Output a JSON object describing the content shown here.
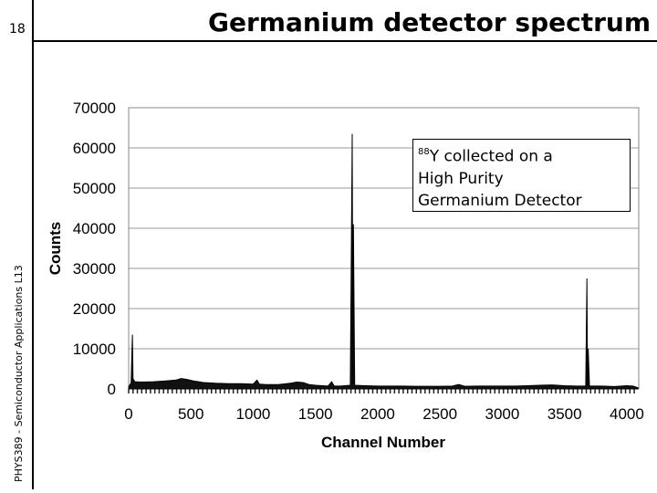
{
  "slide": {
    "number": "18",
    "title": "Germanium detector spectrum",
    "side_text": "PHYS389 - Semiconductor Applications L13"
  },
  "annotation": {
    "isotope_mass": "88",
    "isotope_symbol": "Y",
    "line1_rest": " collected on a",
    "line2": "High Purity",
    "line3": "Germanium Detector"
  },
  "chart_data": {
    "type": "line",
    "title": "",
    "xlabel": "Channel Number",
    "ylabel": "Counts",
    "xlim": [
      0,
      4096
    ],
    "ylim": [
      0,
      70000
    ],
    "x_ticks": [
      0,
      500,
      1000,
      1500,
      2000,
      2500,
      3000,
      3500,
      4000
    ],
    "y_ticks": [
      0,
      10000,
      20000,
      30000,
      40000,
      50000,
      60000,
      70000
    ],
    "grid": "horizontal",
    "line_color": "#000000",
    "series": [
      {
        "name": "",
        "points": [
          [
            0,
            500
          ],
          [
            20,
            1500
          ],
          [
            30,
            13500
          ],
          [
            35,
            2500
          ],
          [
            50,
            1800
          ],
          [
            100,
            1700
          ],
          [
            200,
            1800
          ],
          [
            300,
            2000
          ],
          [
            380,
            2200
          ],
          [
            420,
            2600
          ],
          [
            460,
            2400
          ],
          [
            520,
            2000
          ],
          [
            600,
            1600
          ],
          [
            700,
            1400
          ],
          [
            800,
            1300
          ],
          [
            900,
            1300
          ],
          [
            1000,
            1200
          ],
          [
            1030,
            2200
          ],
          [
            1050,
            1200
          ],
          [
            1100,
            1100
          ],
          [
            1200,
            1100
          ],
          [
            1300,
            1400
          ],
          [
            1350,
            1700
          ],
          [
            1400,
            1600
          ],
          [
            1450,
            1100
          ],
          [
            1500,
            900
          ],
          [
            1600,
            700
          ],
          [
            1630,
            1800
          ],
          [
            1650,
            700
          ],
          [
            1700,
            700
          ],
          [
            1780,
            900
          ],
          [
            1795,
            63500
          ],
          [
            1800,
            1200
          ],
          [
            1805,
            41000
          ],
          [
            1815,
            900
          ],
          [
            1900,
            800
          ],
          [
            2000,
            700
          ],
          [
            2100,
            700
          ],
          [
            2200,
            700
          ],
          [
            2300,
            650
          ],
          [
            2400,
            650
          ],
          [
            2500,
            650
          ],
          [
            2600,
            700
          ],
          [
            2650,
            1100
          ],
          [
            2700,
            650
          ],
          [
            2800,
            700
          ],
          [
            2900,
            700
          ],
          [
            3000,
            700
          ],
          [
            3100,
            700
          ],
          [
            3200,
            800
          ],
          [
            3300,
            900
          ],
          [
            3400,
            1000
          ],
          [
            3500,
            800
          ],
          [
            3600,
            700
          ],
          [
            3670,
            700
          ],
          [
            3680,
            27500
          ],
          [
            3685,
            800
          ],
          [
            3690,
            10000
          ],
          [
            3700,
            700
          ],
          [
            3800,
            700
          ],
          [
            3900,
            600
          ],
          [
            4000,
            800
          ],
          [
            4050,
            700
          ],
          [
            4090,
            300
          ]
        ]
      }
    ]
  }
}
